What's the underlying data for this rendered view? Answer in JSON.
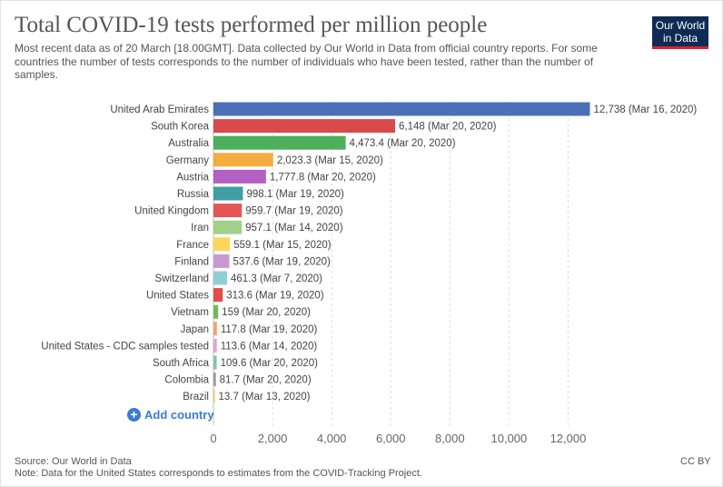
{
  "header": {
    "title": "Total COVID-19 tests performed per million people",
    "subtitle": "Most recent data as of 20 March [18.00GMT]. Data collected by Our World in Data from official country reports. For some countries the number of tests corresponds to the number of individuals who have been tested, rather than the number of samples."
  },
  "logo": {
    "line1": "Our World",
    "line2": "in Data"
  },
  "controls": {
    "add_country": "Add country"
  },
  "footer": {
    "source": "Source: Our World in Data",
    "note": "Note: Data for the United States corresponds to estimates from the COVID-Tracking Project.",
    "license": "CC BY"
  },
  "colors": {
    "text": "#555555",
    "grid": "#dddddd",
    "accent": "#3a7bd5",
    "logo_bg": "#0f2b54",
    "logo_stripe": "#d9232e"
  },
  "chart_data": {
    "type": "bar",
    "orientation": "horizontal",
    "title": "Total COVID-19 tests performed per million people",
    "xlabel": "",
    "ylabel": "",
    "xlim": [
      0,
      13000
    ],
    "x_ticks": [
      0,
      2000,
      4000,
      6000,
      8000,
      10000,
      12000
    ],
    "x_tick_labels": [
      "0",
      "2,000",
      "4,000",
      "6,000",
      "8,000",
      "10,000",
      "12,000"
    ],
    "grid": true,
    "bars": [
      {
        "category": "United Arab Emirates",
        "value": 12738,
        "label": "12,738 (Mar 16, 2020)",
        "color": "#4c6fb5"
      },
      {
        "category": "South Korea",
        "value": 6148,
        "label": "6,148 (Mar 20, 2020)",
        "color": "#d94b4b"
      },
      {
        "category": "Australia",
        "value": 4473.4,
        "label": "4,473.4 (Mar 20, 2020)",
        "color": "#4caf5a"
      },
      {
        "category": "Germany",
        "value": 2023.3,
        "label": "2,023.3 (Mar 15, 2020)",
        "color": "#f2ad3e"
      },
      {
        "category": "Austria",
        "value": 1777.8,
        "label": "1,777.8 (Mar 20, 2020)",
        "color": "#b45fc3"
      },
      {
        "category": "Russia",
        "value": 998.1,
        "label": "998.1 (Mar 19, 2020)",
        "color": "#3f9ea6"
      },
      {
        "category": "United Kingdom",
        "value": 959.7,
        "label": "959.7 (Mar 19, 2020)",
        "color": "#e65555"
      },
      {
        "category": "Iran",
        "value": 957.1,
        "label": "957.1 (Mar 14, 2020)",
        "color": "#a3cf8a"
      },
      {
        "category": "France",
        "value": 559.1,
        "label": "559.1 (Mar 15, 2020)",
        "color": "#fad75a"
      },
      {
        "category": "Finland",
        "value": 537.6,
        "label": "537.6 (Mar 19, 2020)",
        "color": "#c79ad1"
      },
      {
        "category": "Switzerland",
        "value": 461.3,
        "label": "461.3 (Mar 7, 2020)",
        "color": "#91cfd6"
      },
      {
        "category": "United States",
        "value": 313.6,
        "label": "313.6 (Mar 19, 2020)",
        "color": "#e34a4a"
      },
      {
        "category": "Vietnam",
        "value": 159,
        "label": "159 (Mar 20, 2020)",
        "color": "#6dbb5a"
      },
      {
        "category": "Japan",
        "value": 117.8,
        "label": "117.8 (Mar 19, 2020)",
        "color": "#f2a46c"
      },
      {
        "category": "United States - CDC samples tested",
        "value": 113.6,
        "label": "113.6 (Mar 14, 2020)",
        "color": "#e3a3d6"
      },
      {
        "category": "South Africa",
        "value": 109.6,
        "label": "109.6 (Mar 20, 2020)",
        "color": "#7fc6a4"
      },
      {
        "category": "Colombia",
        "value": 81.7,
        "label": "81.7 (Mar 20, 2020)",
        "color": "#999999"
      },
      {
        "category": "Brazil",
        "value": 13.7,
        "label": "13.7 (Mar 13, 2020)",
        "color": "#f0c95a"
      }
    ]
  }
}
